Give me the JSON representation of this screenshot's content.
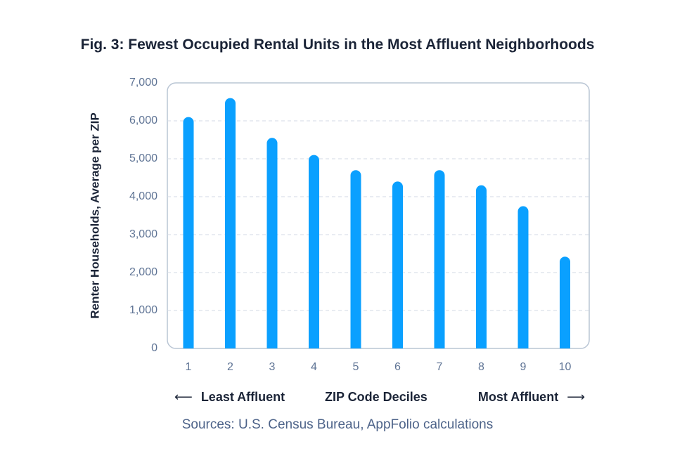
{
  "chart_data": {
    "type": "bar",
    "title": "Fig. 3: Fewest Occupied Rental Units in the Most Affluent Neighborhoods",
    "xlabel": "ZIP Code Deciles",
    "ylabel": "Renter Households, Average per ZIP",
    "categories": [
      "1",
      "2",
      "3",
      "4",
      "5",
      "6",
      "7",
      "8",
      "9",
      "10"
    ],
    "values": [
      6100,
      6600,
      5550,
      5100,
      4700,
      4400,
      4700,
      4300,
      3750,
      2420
    ],
    "ylim": [
      0,
      7000
    ],
    "yticks": [
      "0",
      "1,000",
      "2,000",
      "3,000",
      "4,000",
      "5,000",
      "6,000",
      "7,000"
    ],
    "ytick_values": [
      0,
      1000,
      2000,
      3000,
      4000,
      5000,
      6000,
      7000
    ],
    "grid": true,
    "bar_color": "#0aa0ff",
    "axis_annotations": {
      "left": "Least Affluent",
      "right": "Most Affluent",
      "left_arrow": "⟵",
      "right_arrow": "⟶"
    },
    "source": "Sources: U.S. Census Bureau, AppFolio calculations"
  }
}
